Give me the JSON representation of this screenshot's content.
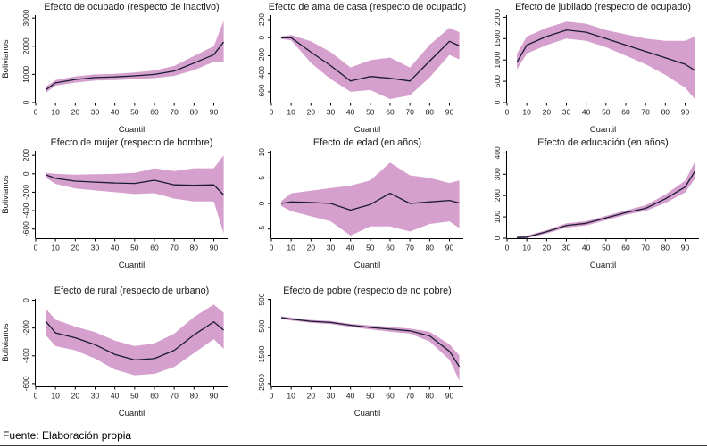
{
  "footer": {
    "source": "Fuente: Elaboración propia"
  },
  "style": {
    "band_color": "#d5a0cd",
    "line_color": "#1a1a33",
    "axis_color": "#000000",
    "title_color": "#1a1a1a"
  },
  "chart_data": [
    {
      "type": "area",
      "title": "Efecto de ocupado (respecto de inactivo)",
      "xlabel": "Cuantil",
      "ylabel": "Bolivianos",
      "x": [
        5,
        10,
        20,
        30,
        40,
        50,
        60,
        70,
        80,
        90,
        95
      ],
      "line": [
        450,
        700,
        820,
        890,
        910,
        950,
        1000,
        1120,
        1400,
        1700,
        2150
      ],
      "band_upper": [
        560,
        800,
        930,
        1000,
        1020,
        1070,
        1140,
        1300,
        1650,
        2000,
        2900
      ],
      "band_lower": [
        340,
        600,
        710,
        780,
        800,
        830,
        870,
        950,
        1150,
        1450,
        1450
      ],
      "xlim": [
        0,
        97
      ],
      "ylim": [
        0,
        3100
      ],
      "xticks": [
        0,
        10,
        20,
        30,
        40,
        50,
        60,
        70,
        80,
        90
      ],
      "yticks": [
        0,
        1000,
        2000,
        3000
      ]
    },
    {
      "type": "area",
      "title": "Efecto de ama de casa (respecto de ocupado)",
      "xlabel": "Cuantil",
      "ylabel": "",
      "x": [
        5,
        10,
        20,
        30,
        40,
        50,
        60,
        70,
        80,
        90,
        95
      ],
      "line": [
        0,
        0,
        -160,
        -310,
        -480,
        -430,
        -450,
        -480,
        -260,
        -40,
        -90
      ],
      "band_upper": [
        15,
        30,
        -40,
        -160,
        -330,
        -250,
        -220,
        -330,
        -80,
        110,
        60
      ],
      "band_lower": [
        -15,
        -30,
        -280,
        -460,
        -600,
        -580,
        -680,
        -640,
        -440,
        -190,
        -240
      ],
      "xlim": [
        0,
        97
      ],
      "ylim": [
        -720,
        250
      ],
      "xticks": [
        0,
        10,
        20,
        30,
        40,
        50,
        60,
        70,
        80,
        90
      ],
      "yticks": [
        -600,
        -400,
        -200,
        0,
        200
      ]
    },
    {
      "type": "area",
      "title": "Efecto de jubilado (respecto de ocupado)",
      "xlabel": "Cuantil",
      "ylabel": "",
      "x": [
        5,
        10,
        20,
        30,
        40,
        50,
        60,
        70,
        80,
        90,
        95
      ],
      "line": [
        950,
        1350,
        1550,
        1700,
        1650,
        1500,
        1350,
        1200,
        1050,
        900,
        750
      ],
      "band_upper": [
        1150,
        1550,
        1750,
        1900,
        1850,
        1700,
        1600,
        1500,
        1450,
        1450,
        1550
      ],
      "band_lower": [
        780,
        1150,
        1350,
        1500,
        1450,
        1300,
        1100,
        900,
        650,
        350,
        80
      ],
      "xlim": [
        0,
        97
      ],
      "ylim": [
        0,
        2050
      ],
      "xticks": [
        0,
        10,
        20,
        30,
        40,
        50,
        60,
        70,
        80,
        90
      ],
      "yticks": [
        0,
        500,
        1000,
        1500,
        2000
      ]
    },
    {
      "type": "area",
      "title": "Efecto de mujer (respecto de hombre)",
      "xlabel": "Cuantil",
      "ylabel": "Bolivianos",
      "x": [
        5,
        10,
        20,
        30,
        40,
        50,
        60,
        70,
        80,
        90,
        95
      ],
      "line": [
        -10,
        -50,
        -80,
        -90,
        -100,
        -105,
        -70,
        -120,
        -125,
        -120,
        -230
      ],
      "band_upper": [
        10,
        0,
        -10,
        -5,
        0,
        10,
        60,
        30,
        60,
        60,
        200
      ],
      "band_lower": [
        -40,
        -110,
        -160,
        -180,
        -200,
        -220,
        -210,
        -270,
        -300,
        -300,
        -650
      ],
      "xlim": [
        0,
        97
      ],
      "ylim": [
        -700,
        250
      ],
      "xticks": [
        0,
        10,
        20,
        30,
        40,
        50,
        60,
        70,
        80,
        90
      ],
      "yticks": [
        -600,
        -400,
        -200,
        0,
        200
      ]
    },
    {
      "type": "area",
      "title": "Efecto de edad (en años)",
      "xlabel": "Cuantil",
      "ylabel": "",
      "x": [
        5,
        10,
        20,
        30,
        40,
        50,
        60,
        70,
        80,
        90,
        95
      ],
      "line": [
        0,
        0.3,
        0.2,
        0,
        -1.3,
        -0.2,
        2,
        0,
        0.3,
        0.6,
        0.1
      ],
      "band_upper": [
        0.5,
        2,
        2.5,
        3,
        3.5,
        4.5,
        8,
        5.5,
        5,
        4,
        4.5
      ],
      "band_lower": [
        -0.5,
        -1.5,
        -2.5,
        -3.5,
        -6.3,
        -4.5,
        -4.5,
        -5.5,
        -4,
        -3.5,
        -4.8
      ],
      "xlim": [
        0,
        97
      ],
      "ylim": [
        -6.8,
        10.3
      ],
      "xticks": [
        0,
        10,
        20,
        30,
        40,
        50,
        60,
        70,
        80,
        90
      ],
      "yticks": [
        -5,
        0,
        5,
        10
      ]
    },
    {
      "type": "area",
      "title": "Efecto de educación (en años)",
      "xlabel": "Cuantil",
      "ylabel": "",
      "x": [
        5,
        10,
        20,
        30,
        40,
        50,
        60,
        70,
        80,
        90,
        95
      ],
      "line": [
        3,
        5,
        30,
        60,
        70,
        95,
        120,
        140,
        185,
        240,
        315
      ],
      "band_upper": [
        8,
        12,
        38,
        70,
        80,
        105,
        130,
        155,
        205,
        270,
        360
      ],
      "band_lower": [
        0,
        0,
        22,
        50,
        60,
        85,
        110,
        128,
        165,
        215,
        280
      ],
      "xlim": [
        0,
        97
      ],
      "ylim": [
        0,
        410
      ],
      "xticks": [
        0,
        10,
        20,
        30,
        40,
        50,
        60,
        70,
        80,
        90
      ],
      "yticks": [
        0,
        100,
        200,
        300,
        400
      ]
    },
    {
      "type": "area",
      "title": "Efecto de rural (respecto de urbano)",
      "xlabel": "Cuantil",
      "ylabel": "Bolivianos",
      "x": [
        5,
        10,
        20,
        30,
        40,
        50,
        60,
        70,
        80,
        90,
        95
      ],
      "line": [
        -150,
        -235,
        -270,
        -320,
        -390,
        -430,
        -420,
        -360,
        -250,
        -155,
        -215
      ],
      "band_upper": [
        -60,
        -140,
        -190,
        -230,
        -290,
        -330,
        -310,
        -240,
        -120,
        -30,
        -90
      ],
      "band_lower": [
        -250,
        -330,
        -360,
        -420,
        -500,
        -540,
        -530,
        -480,
        -380,
        -280,
        -350
      ],
      "xlim": [
        0,
        97
      ],
      "ylim": [
        -620,
        10
      ],
      "xticks": [
        0,
        10,
        20,
        30,
        40,
        50,
        60,
        70,
        80,
        90
      ],
      "yticks": [
        -600,
        -400,
        -200,
        0
      ]
    },
    {
      "type": "area",
      "title": "Efecto de pobre (respecto de no pobre)",
      "xlabel": "Cuantil",
      "ylabel": "",
      "x": [
        5,
        10,
        20,
        30,
        40,
        50,
        60,
        70,
        80,
        90,
        95
      ],
      "line": [
        -150,
        -200,
        -280,
        -320,
        -420,
        -500,
        -560,
        -620,
        -800,
        -1350,
        -1900
      ],
      "band_upper": [
        -100,
        -150,
        -230,
        -270,
        -370,
        -430,
        -480,
        -540,
        -650,
        -1100,
        -1500
      ],
      "band_lower": [
        -200,
        -250,
        -330,
        -380,
        -480,
        -570,
        -650,
        -720,
        -1000,
        -1650,
        -2400
      ],
      "xlim": [
        0,
        97
      ],
      "ylim": [
        -2600,
        520
      ],
      "xticks": [
        0,
        10,
        20,
        30,
        40,
        50,
        60,
        70,
        80,
        90
      ],
      "yticks": [
        -2500,
        -1500,
        -500,
        500
      ]
    }
  ]
}
